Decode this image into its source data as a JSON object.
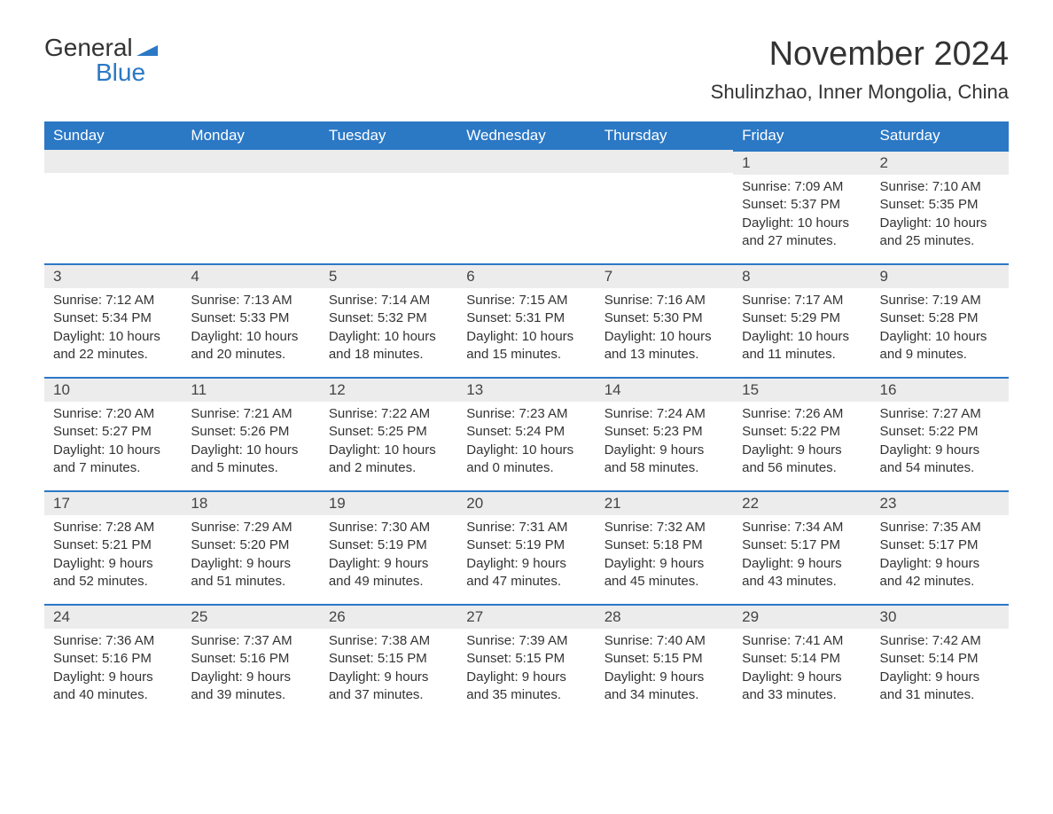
{
  "logo": {
    "text_general": "General",
    "text_blue": "Blue",
    "flag_color": "#2b78c5"
  },
  "title": "November 2024",
  "location": "Shulinzhao, Inner Mongolia, China",
  "colors": {
    "header_bg": "#2b78c5",
    "header_text": "#ffffff",
    "daynum_bg": "#ececec",
    "border_top": "#2b78c5",
    "body_text": "#333333",
    "page_bg": "#ffffff"
  },
  "weekdays": [
    "Sunday",
    "Monday",
    "Tuesday",
    "Wednesday",
    "Thursday",
    "Friday",
    "Saturday"
  ],
  "weeks": [
    [
      null,
      null,
      null,
      null,
      null,
      {
        "n": "1",
        "sr": "7:09 AM",
        "ss": "5:37 PM",
        "dl": "10 hours and 27 minutes."
      },
      {
        "n": "2",
        "sr": "7:10 AM",
        "ss": "5:35 PM",
        "dl": "10 hours and 25 minutes."
      }
    ],
    [
      {
        "n": "3",
        "sr": "7:12 AM",
        "ss": "5:34 PM",
        "dl": "10 hours and 22 minutes."
      },
      {
        "n": "4",
        "sr": "7:13 AM",
        "ss": "5:33 PM",
        "dl": "10 hours and 20 minutes."
      },
      {
        "n": "5",
        "sr": "7:14 AM",
        "ss": "5:32 PM",
        "dl": "10 hours and 18 minutes."
      },
      {
        "n": "6",
        "sr": "7:15 AM",
        "ss": "5:31 PM",
        "dl": "10 hours and 15 minutes."
      },
      {
        "n": "7",
        "sr": "7:16 AM",
        "ss": "5:30 PM",
        "dl": "10 hours and 13 minutes."
      },
      {
        "n": "8",
        "sr": "7:17 AM",
        "ss": "5:29 PM",
        "dl": "10 hours and 11 minutes."
      },
      {
        "n": "9",
        "sr": "7:19 AM",
        "ss": "5:28 PM",
        "dl": "10 hours and 9 minutes."
      }
    ],
    [
      {
        "n": "10",
        "sr": "7:20 AM",
        "ss": "5:27 PM",
        "dl": "10 hours and 7 minutes."
      },
      {
        "n": "11",
        "sr": "7:21 AM",
        "ss": "5:26 PM",
        "dl": "10 hours and 5 minutes."
      },
      {
        "n": "12",
        "sr": "7:22 AM",
        "ss": "5:25 PM",
        "dl": "10 hours and 2 minutes."
      },
      {
        "n": "13",
        "sr": "7:23 AM",
        "ss": "5:24 PM",
        "dl": "10 hours and 0 minutes."
      },
      {
        "n": "14",
        "sr": "7:24 AM",
        "ss": "5:23 PM",
        "dl": "9 hours and 58 minutes."
      },
      {
        "n": "15",
        "sr": "7:26 AM",
        "ss": "5:22 PM",
        "dl": "9 hours and 56 minutes."
      },
      {
        "n": "16",
        "sr": "7:27 AM",
        "ss": "5:22 PM",
        "dl": "9 hours and 54 minutes."
      }
    ],
    [
      {
        "n": "17",
        "sr": "7:28 AM",
        "ss": "5:21 PM",
        "dl": "9 hours and 52 minutes."
      },
      {
        "n": "18",
        "sr": "7:29 AM",
        "ss": "5:20 PM",
        "dl": "9 hours and 51 minutes."
      },
      {
        "n": "19",
        "sr": "7:30 AM",
        "ss": "5:19 PM",
        "dl": "9 hours and 49 minutes."
      },
      {
        "n": "20",
        "sr": "7:31 AM",
        "ss": "5:19 PM",
        "dl": "9 hours and 47 minutes."
      },
      {
        "n": "21",
        "sr": "7:32 AM",
        "ss": "5:18 PM",
        "dl": "9 hours and 45 minutes."
      },
      {
        "n": "22",
        "sr": "7:34 AM",
        "ss": "5:17 PM",
        "dl": "9 hours and 43 minutes."
      },
      {
        "n": "23",
        "sr": "7:35 AM",
        "ss": "5:17 PM",
        "dl": "9 hours and 42 minutes."
      }
    ],
    [
      {
        "n": "24",
        "sr": "7:36 AM",
        "ss": "5:16 PM",
        "dl": "9 hours and 40 minutes."
      },
      {
        "n": "25",
        "sr": "7:37 AM",
        "ss": "5:16 PM",
        "dl": "9 hours and 39 minutes."
      },
      {
        "n": "26",
        "sr": "7:38 AM",
        "ss": "5:15 PM",
        "dl": "9 hours and 37 minutes."
      },
      {
        "n": "27",
        "sr": "7:39 AM",
        "ss": "5:15 PM",
        "dl": "9 hours and 35 minutes."
      },
      {
        "n": "28",
        "sr": "7:40 AM",
        "ss": "5:15 PM",
        "dl": "9 hours and 34 minutes."
      },
      {
        "n": "29",
        "sr": "7:41 AM",
        "ss": "5:14 PM",
        "dl": "9 hours and 33 minutes."
      },
      {
        "n": "30",
        "sr": "7:42 AM",
        "ss": "5:14 PM",
        "dl": "9 hours and 31 minutes."
      }
    ]
  ],
  "labels": {
    "sunrise": "Sunrise:",
    "sunset": "Sunset:",
    "daylight": "Daylight:"
  }
}
